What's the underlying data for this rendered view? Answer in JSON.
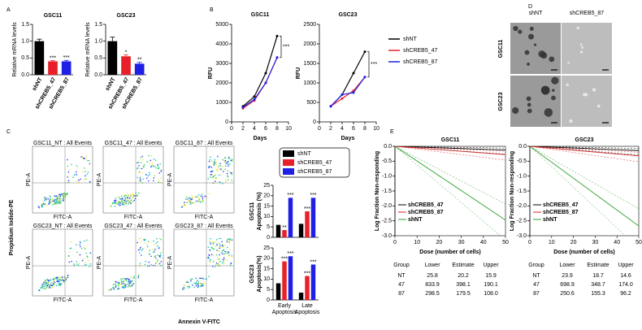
{
  "panel_labels": [
    "A",
    "B",
    "C",
    "D",
    "E"
  ],
  "flow_cytometry": {
    "ylabel": "Propidium Iodide-PE",
    "xlabel": "Annexin V-FITC",
    "plot_ylabel": "PE-A",
    "plot_xlabel": "FITC-A",
    "plots": [
      "GSC11_NT : All Events",
      "GSC11_47 : All Events",
      "GSC11_87 : All Events",
      "GSC23_NT : All Events",
      "GSC23_47 : All Events",
      "GSC23_87 : All Events"
    ]
  },
  "images": {
    "columns": [
      "shNT",
      "shCREB5_87"
    ],
    "rows": [
      "GSC11",
      "GSC23"
    ]
  },
  "chart_data": [
    {
      "type": "bar",
      "title": "GSC11",
      "ylabel": "Relative mRNA levels",
      "categories": [
        "shNT",
        "shCREB5_47",
        "shCREB5_87"
      ],
      "values": [
        1.0,
        0.4,
        0.4
      ],
      "errors": [
        0.06,
        0.02,
        0.03
      ],
      "significance": [
        null,
        "***",
        "***"
      ],
      "colors": [
        "#000000",
        "#e8202a",
        "#1f1fe6"
      ],
      "ylim": [
        0,
        1.5
      ],
      "yticks": [
        {
          "value": 0,
          "label": "0.0"
        },
        {
          "value": 0.5,
          "label": "0.5"
        },
        {
          "value": 1,
          "label": "1.0"
        },
        {
          "value": 1.5,
          "label": "1.5"
        }
      ]
    },
    {
      "type": "bar",
      "title": "GSC23",
      "ylabel": "Relative mRNA levels",
      "categories": [
        "shNT",
        "shCREB5_47",
        "shCREB5_87"
      ],
      "values": [
        1.0,
        0.55,
        0.33
      ],
      "errors": [
        0.12,
        0.04,
        0.04
      ],
      "significance": [
        null,
        "*",
        "**"
      ],
      "colors": [
        "#000000",
        "#e8202a",
        "#1f1fe6"
      ],
      "ylim": [
        0,
        1.5
      ],
      "yticks": [
        {
          "value": 0,
          "label": "0.0"
        },
        {
          "value": 0.5,
          "label": "0.5"
        },
        {
          "value": 1,
          "label": "1.0"
        },
        {
          "value": 1.5,
          "label": "1.5"
        }
      ]
    },
    {
      "type": "line",
      "title": "GSC11",
      "xlabel": "Days",
      "ylabel": "RFU",
      "x": [
        2,
        4,
        6,
        8
      ],
      "xlim": [
        0,
        10
      ],
      "xticks": [
        0,
        2,
        4,
        6,
        8,
        10
      ],
      "ylim": [
        0,
        5000
      ],
      "yticks": [
        0,
        1000,
        2000,
        3000,
        4000,
        5000
      ],
      "annotation": "***",
      "series": [
        {
          "name": "shNT",
          "color": "#000000",
          "values": [
            800,
            1300,
            2500,
            4400
          ]
        },
        {
          "name": "shCREB5_47",
          "color": "#e8202a",
          "values": [
            700,
            1100,
            2000,
            3300
          ]
        },
        {
          "name": "shCREB5_87",
          "color": "#1f1fe6",
          "values": [
            750,
            1150,
            2000,
            3300
          ]
        }
      ]
    },
    {
      "type": "line",
      "title": "GSC23",
      "xlabel": "Days",
      "ylabel": "RFU",
      "x": [
        2,
        4,
        6,
        8
      ],
      "xlim": [
        0,
        10
      ],
      "xticks": [
        0,
        2,
        4,
        6,
        8,
        10
      ],
      "ylim": [
        0,
        2500
      ],
      "yticks": [
        0,
        500,
        1000,
        1500,
        2000,
        2500
      ],
      "annotation": "***",
      "series": [
        {
          "name": "shNT",
          "color": "#000000",
          "values": [
            400,
            700,
            1250,
            1800
          ]
        },
        {
          "name": "shCREB5_47",
          "color": "#e8202a",
          "values": [
            400,
            600,
            800,
            1150
          ]
        },
        {
          "name": "shCREB5_87",
          "color": "#1f1fe6",
          "values": [
            400,
            700,
            750,
            1150
          ]
        }
      ]
    },
    {
      "type": "grouped_bar",
      "row_label": "GSC11",
      "ylabel": "Apoptosis (%)",
      "categories": [
        "Early Apoptosis",
        "Late Apoptosis"
      ],
      "ylim": [
        0,
        25
      ],
      "yticks": [
        0,
        5,
        10,
        15,
        20,
        25
      ],
      "series": [
        {
          "name": "shNT",
          "color": "#000000",
          "values": [
            6,
            6.5
          ],
          "significance": [
            null,
            null
          ]
        },
        {
          "name": "shCREB5_47",
          "color": "#e8202a",
          "values": [
            3.5,
            12.5
          ],
          "significance": [
            "**",
            "***"
          ]
        },
        {
          "name": "shCREB5_87",
          "color": "#1f1fe6",
          "values": [
            19,
            19
          ],
          "significance": [
            "***",
            "***"
          ]
        }
      ]
    },
    {
      "type": "grouped_bar",
      "row_label": "GSC23",
      "ylabel": "Apoptosis(%)",
      "categories": [
        "Early Apoptosis",
        "Late Apoptosis"
      ],
      "ylim": [
        0,
        25
      ],
      "yticks": [
        0,
        5,
        10,
        15,
        20,
        25
      ],
      "series": [
        {
          "name": "shNT",
          "color": "#000000",
          "values": [
            8,
            3.5
          ],
          "significance": [
            null,
            null
          ]
        },
        {
          "name": "shCREB5_47",
          "color": "#e8202a",
          "values": [
            18.5,
            11.5
          ],
          "significance": [
            "***",
            "***"
          ]
        },
        {
          "name": "shCREB5_87",
          "color": "#1f1fe6",
          "values": [
            21,
            17
          ],
          "significance": [
            "***",
            "***"
          ]
        }
      ]
    },
    {
      "type": "limiting_dilution",
      "title": "GSC11",
      "xlabel": "Dose (number of cells)",
      "ylabel": "Log Fraction Non-responding",
      "xlim": [
        0,
        50
      ],
      "xticks": [
        0,
        10,
        20,
        30,
        40,
        50
      ],
      "ylim": [
        -3,
        0
      ],
      "yticks": [
        {
          "value": 0,
          "label": "0.0"
        },
        {
          "value": -0.5,
          "label": "-0.5"
        },
        {
          "value": -1,
          "label": "-1.0"
        },
        {
          "value": -1.5,
          "label": "-1.5"
        },
        {
          "value": -2,
          "label": "-2.0"
        },
        {
          "value": -2.5,
          "label": "-2.5"
        },
        {
          "value": -3,
          "label": "-3.0"
        }
      ],
      "legend": [
        {
          "name": "shCREB5_47",
          "color": "#000000"
        },
        {
          "name": "shCREB5_87",
          "color": "#d62728"
        },
        {
          "name": "shNT",
          "color": "#2ca02c"
        }
      ],
      "line_colors": [
        "#2ca02c",
        "#000000",
        "#d62728"
      ],
      "table": {
        "columns": [
          "Group",
          "Lower",
          "Estimate",
          "Upper"
        ],
        "rows": [
          [
            "NT",
            "25.8",
            "20.2",
            "15.9"
          ],
          [
            "47",
            "833.9",
            "398.1",
            "190.1"
          ],
          [
            "87",
            "298.5",
            "179.5",
            "108.0"
          ]
        ]
      }
    },
    {
      "type": "limiting_dilution",
      "title": "GSC23",
      "xlabel": "Dose (number of cells)",
      "ylabel": "Log Fraction Non-responding",
      "xlim": [
        0,
        50
      ],
      "xticks": [
        0,
        10,
        20,
        30,
        40,
        50
      ],
      "ylim": [
        -3,
        0
      ],
      "yticks": [
        {
          "value": 0,
          "label": "0.0"
        },
        {
          "value": -0.5,
          "label": "-0.5"
        },
        {
          "value": -1,
          "label": "-1.0"
        },
        {
          "value": -1.5,
          "label": "-1.5"
        },
        {
          "value": -2,
          "label": "-2.0"
        },
        {
          "value": -2.5,
          "label": "-2.5"
        },
        {
          "value": -3,
          "label": "-3.0"
        }
      ],
      "legend": [
        {
          "name": "shCREB5_47",
          "color": "#000000"
        },
        {
          "name": "shCREB5_87",
          "color": "#d62728"
        },
        {
          "name": "shNT",
          "color": "#2ca02c"
        }
      ],
      "line_colors": [
        "#2ca02c",
        "#000000",
        "#d62728"
      ],
      "table": {
        "columns": [
          "Group",
          "Lower",
          "Estimate",
          "Upper"
        ],
        "rows": [
          [
            "NT",
            "23.9",
            "18.7",
            "14.6"
          ],
          [
            "47",
            "698.9",
            "348.7",
            "174.0"
          ],
          [
            "87",
            "250.6",
            "155.3",
            "96.2"
          ]
        ]
      }
    }
  ]
}
